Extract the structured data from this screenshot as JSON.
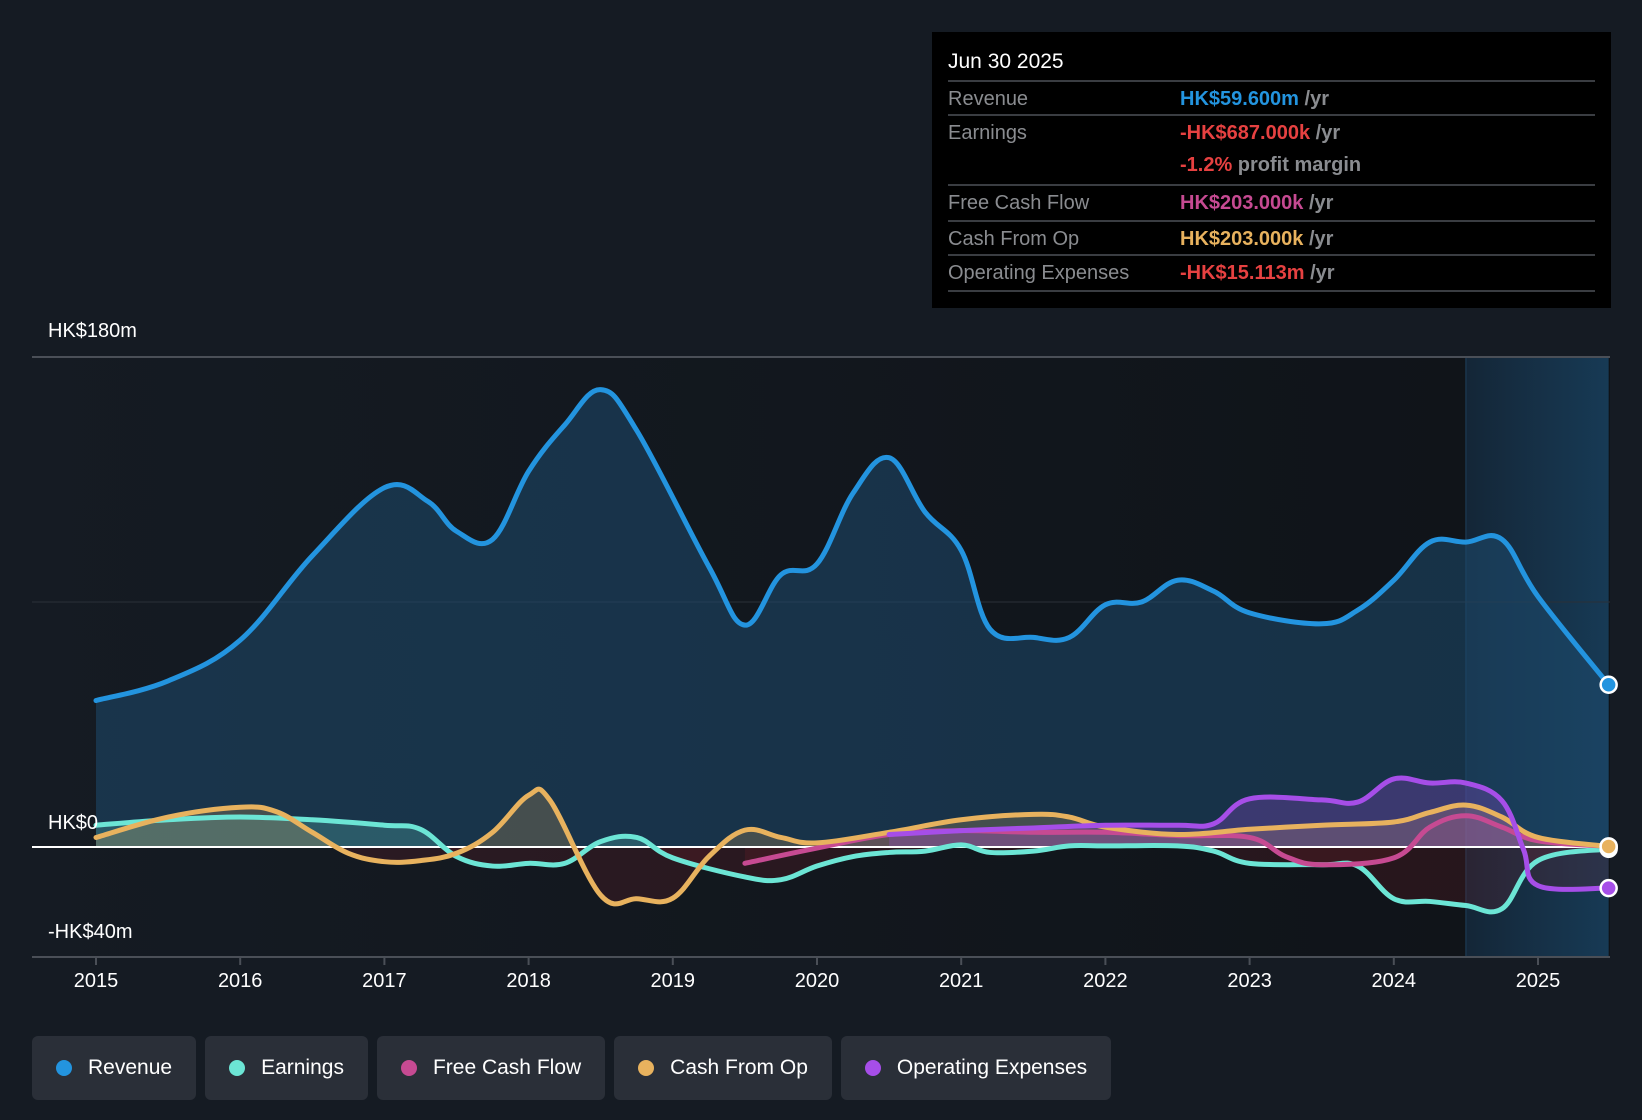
{
  "tooltip": {
    "date": "Jun 30 2025",
    "rows": [
      {
        "label": "Revenue",
        "value": "HK$59.600m",
        "unit": " /yr",
        "color": "#2394df"
      },
      {
        "label": "Earnings",
        "value": "-HK$687.000k",
        "unit": " /yr",
        "color": "#e64141"
      },
      {
        "label": "",
        "value": "-1.2%",
        "unit": " profit margin",
        "color": "#e64141"
      },
      {
        "label": "Free Cash Flow",
        "value": "HK$203.000k",
        "unit": " /yr",
        "color": "#c64a92"
      },
      {
        "label": "Cash From Op",
        "value": "HK$203.000k",
        "unit": " /yr",
        "color": "#e8b25e"
      },
      {
        "label": "Operating Expenses",
        "value": "-HK$15.113m",
        "unit": " /yr",
        "color": "#e64141"
      }
    ]
  },
  "legend": [
    {
      "label": "Revenue",
      "color": "#2394df"
    },
    {
      "label": "Earnings",
      "color": "#6ce5d5"
    },
    {
      "label": "Free Cash Flow",
      "color": "#c64a92"
    },
    {
      "label": "Cash From Op",
      "color": "#e8b25e"
    },
    {
      "label": "Operating Expenses",
      "color": "#a64ee8"
    }
  ],
  "chart_data": {
    "type": "line",
    "title": "",
    "xlabel": "",
    "ylabel": "",
    "currency": "HK$",
    "unit": "m",
    "x_ticks": [
      "2015",
      "2016",
      "2017",
      "2018",
      "2019",
      "2020",
      "2021",
      "2022",
      "2023",
      "2024",
      "2025"
    ],
    "y_tick_labels": [
      "HK$180m",
      "HK$0",
      "-HK$40m"
    ],
    "ylim": [
      -40,
      180
    ],
    "xlim": [
      2014.56,
      2025.49
    ],
    "grid": true,
    "legend_position": "bottom",
    "highlight_range": [
      2024.5,
      2025.49
    ],
    "series": [
      {
        "name": "Revenue",
        "color": "#2394df",
        "filled": true,
        "x": [
          2015.0,
          2015.5,
          2016.0,
          2016.5,
          2017.0,
          2017.3,
          2017.5,
          2017.75,
          2018.0,
          2018.25,
          2018.5,
          2018.75,
          2019.25,
          2019.5,
          2019.75,
          2020.0,
          2020.25,
          2020.5,
          2020.75,
          2021.0,
          2021.2,
          2021.5,
          2021.75,
          2022.0,
          2022.25,
          2022.5,
          2022.75,
          2023.0,
          2023.5,
          2023.75,
          2024.0,
          2024.25,
          2024.5,
          2024.75,
          2025.0,
          2025.49
        ],
        "values": [
          53.8,
          61,
          76,
          107,
          132,
          127,
          116,
          113,
          138,
          155,
          168,
          153,
          103,
          81.5,
          100,
          104,
          130,
          143,
          123,
          109,
          80,
          77,
          77,
          89,
          90,
          98,
          94,
          86,
          82,
          87,
          98,
          112,
          112,
          113,
          92,
          59.6
        ]
      },
      {
        "name": "Earnings",
        "color": "#6ce5d5",
        "filled": true,
        "x": [
          2015.0,
          2015.5,
          2016.0,
          2016.5,
          2017.0,
          2017.25,
          2017.5,
          2017.75,
          2018.0,
          2018.25,
          2018.5,
          2018.75,
          2019.0,
          2019.5,
          2019.75,
          2020.0,
          2020.25,
          2020.5,
          2020.75,
          2021.0,
          2021.2,
          2021.5,
          2021.75,
          2022.0,
          2022.5,
          2022.75,
          2023.0,
          2023.5,
          2023.75,
          2024.0,
          2024.25,
          2024.5,
          2024.75,
          2025.0,
          2025.49
        ],
        "values": [
          8,
          10,
          11,
          10,
          8,
          6.5,
          -3.5,
          -7,
          -6,
          -6,
          2,
          3.5,
          -4,
          -11,
          -12,
          -7,
          -3.5,
          -2,
          -1.5,
          0.8,
          -2,
          -1.5,
          0.4,
          0.4,
          0.4,
          -1.5,
          -6,
          -6.5,
          -7,
          -19,
          -20,
          -21.5,
          -22.7,
          -5,
          -0.687
        ]
      },
      {
        "name": "Free Cash Flow",
        "color": "#c64a92",
        "filled": true,
        "x": [
          2019.5,
          2020.0,
          2020.5,
          2021.0,
          2021.5,
          2022.0,
          2022.5,
          2023.0,
          2023.25,
          2023.5,
          2024.0,
          2024.25,
          2024.5,
          2024.75,
          2025.0,
          2025.49
        ],
        "values": [
          -6,
          -0.4,
          4.6,
          6,
          5.4,
          5.4,
          4.2,
          3.5,
          -3.5,
          -6.5,
          -4,
          7.3,
          11.5,
          7.3,
          2.3,
          0.203
        ]
      },
      {
        "name": "Cash From Op",
        "color": "#e8b25e",
        "filled": true,
        "x": [
          2015.0,
          2015.5,
          2016.0,
          2016.25,
          2016.5,
          2016.75,
          2017.0,
          2017.25,
          2017.5,
          2017.75,
          2018.0,
          2018.15,
          2018.5,
          2018.75,
          2019.0,
          2019.25,
          2019.5,
          2019.75,
          2020.0,
          2020.5,
          2021.0,
          2021.5,
          2021.75,
          2022.0,
          2022.5,
          2023.0,
          2023.5,
          2024.0,
          2024.25,
          2024.5,
          2024.75,
          2025.0,
          2025.49
        ],
        "values": [
          3.5,
          11,
          14.6,
          13,
          5.4,
          -2.3,
          -5.4,
          -5,
          -2.3,
          5.4,
          19,
          17,
          -17.7,
          -19,
          -18.8,
          -3.5,
          6.2,
          3.5,
          1.5,
          5.4,
          10,
          12,
          11,
          7.3,
          4.6,
          6.5,
          8,
          9.2,
          12.7,
          15.4,
          11,
          3.5,
          0.203
        ]
      },
      {
        "name": "Operating Expenses",
        "color": "#a64ee8",
        "filled": true,
        "x": [
          2020.5,
          2021.0,
          2021.5,
          2022.0,
          2022.5,
          2022.75,
          2023.0,
          2023.5,
          2023.75,
          2024.0,
          2024.25,
          2024.5,
          2024.75,
          2024.9,
          2025.0,
          2025.49
        ],
        "values": [
          4.6,
          6,
          7,
          8,
          8,
          8.5,
          17.7,
          17.3,
          16.5,
          25,
          23.5,
          23.5,
          17,
          -1,
          -14.2,
          -15.113
        ]
      }
    ]
  }
}
